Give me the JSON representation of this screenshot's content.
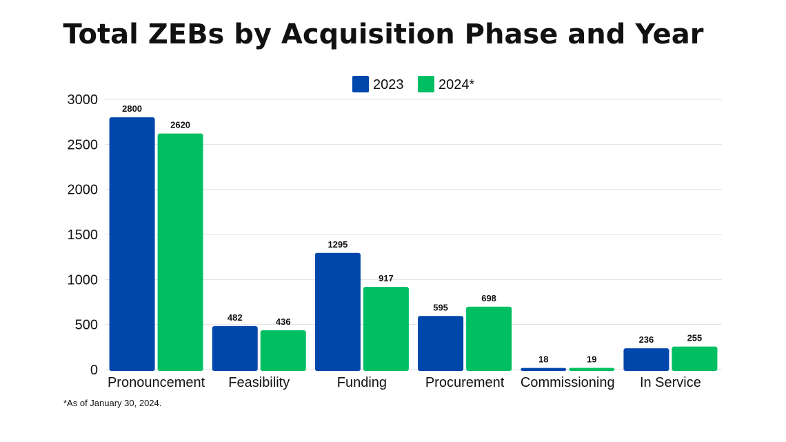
{
  "chart_data": {
    "type": "bar",
    "title": "Total ZEBs by Acquisition Phase and Year",
    "categories": [
      "Pronouncement",
      "Feasibility",
      "Funding",
      "Procurement",
      "Commissioning",
      "In Service"
    ],
    "series": [
      {
        "name": "2023",
        "color": "#0047AB",
        "values": [
          2800,
          482,
          1295,
          595,
          18,
          236
        ]
      },
      {
        "name": "2024*",
        "color": "#00BF63",
        "values": [
          2620,
          436,
          917,
          698,
          19,
          255
        ]
      }
    ],
    "ylim": [
      0,
      3000
    ],
    "yticks": [
      0,
      500,
      1000,
      1500,
      2000,
      2500,
      3000
    ],
    "grid": true,
    "legend_position": "top-right",
    "footnote": "*As of January 30, 2024."
  }
}
